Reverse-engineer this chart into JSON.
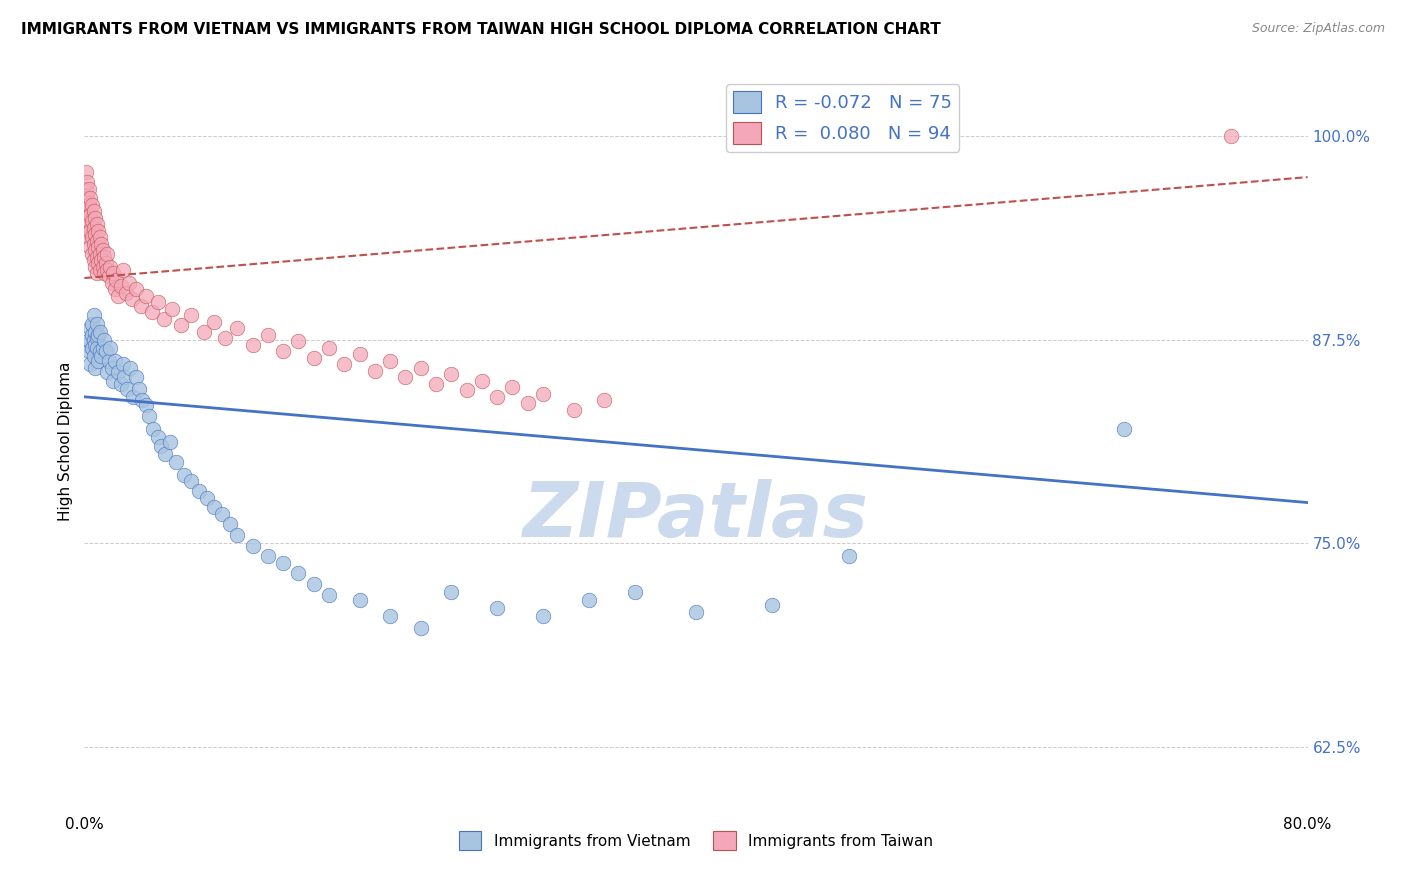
{
  "title": "IMMIGRANTS FROM VIETNAM VS IMMIGRANTS FROM TAIWAN HIGH SCHOOL DIPLOMA CORRELATION CHART",
  "source": "Source: ZipAtlas.com",
  "xlabel_bottom_left": "0.0%",
  "xlabel_bottom_right": "80.0%",
  "ylabel": "High School Diploma",
  "yticks": [
    0.625,
    0.75,
    0.875,
    1.0
  ],
  "ytick_labels": [
    "62.5%",
    "75.0%",
    "87.5%",
    "100.0%"
  ],
  "watermark": "ZIPatlas",
  "legend_r_vietnam": "-0.072",
  "legend_n_vietnam": "75",
  "legend_r_taiwan": "0.080",
  "legend_n_taiwan": "94",
  "color_vietnam": "#a8c4e0",
  "color_taiwan": "#f4a7b9",
  "trendline_vietnam": "#4472c4",
  "trendline_taiwan": "#c0504d",
  "vietnam_x": [
    0.002,
    0.003,
    0.003,
    0.004,
    0.004,
    0.005,
    0.005,
    0.005,
    0.006,
    0.006,
    0.006,
    0.007,
    0.007,
    0.007,
    0.008,
    0.008,
    0.008,
    0.009,
    0.009,
    0.01,
    0.01,
    0.011,
    0.012,
    0.013,
    0.014,
    0.015,
    0.016,
    0.017,
    0.018,
    0.019,
    0.02,
    0.022,
    0.024,
    0.025,
    0.026,
    0.028,
    0.03,
    0.032,
    0.034,
    0.036,
    0.038,
    0.04,
    0.042,
    0.045,
    0.048,
    0.05,
    0.053,
    0.056,
    0.06,
    0.065,
    0.07,
    0.075,
    0.08,
    0.085,
    0.09,
    0.095,
    0.1,
    0.11,
    0.12,
    0.13,
    0.14,
    0.15,
    0.16,
    0.18,
    0.2,
    0.22,
    0.24,
    0.27,
    0.3,
    0.33,
    0.36,
    0.4,
    0.45,
    0.5,
    0.68
  ],
  "vietnam_y": [
    0.872,
    0.868,
    0.875,
    0.882,
    0.86,
    0.878,
    0.885,
    0.87,
    0.89,
    0.875,
    0.865,
    0.872,
    0.88,
    0.858,
    0.876,
    0.87,
    0.885,
    0.862,
    0.878,
    0.868,
    0.88,
    0.865,
    0.87,
    0.875,
    0.868,
    0.855,
    0.862,
    0.87,
    0.858,
    0.85,
    0.862,
    0.855,
    0.848,
    0.86,
    0.852,
    0.845,
    0.858,
    0.84,
    0.852,
    0.845,
    0.838,
    0.835,
    0.828,
    0.82,
    0.815,
    0.81,
    0.805,
    0.812,
    0.8,
    0.792,
    0.788,
    0.782,
    0.778,
    0.772,
    0.768,
    0.762,
    0.755,
    0.748,
    0.742,
    0.738,
    0.732,
    0.725,
    0.718,
    0.715,
    0.705,
    0.698,
    0.72,
    0.71,
    0.705,
    0.715,
    0.72,
    0.708,
    0.712,
    0.742,
    0.82
  ],
  "taiwan_x": [
    0.001,
    0.001,
    0.001,
    0.002,
    0.002,
    0.002,
    0.002,
    0.003,
    0.003,
    0.003,
    0.003,
    0.004,
    0.004,
    0.004,
    0.004,
    0.005,
    0.005,
    0.005,
    0.005,
    0.006,
    0.006,
    0.006,
    0.006,
    0.007,
    0.007,
    0.007,
    0.007,
    0.008,
    0.008,
    0.008,
    0.008,
    0.009,
    0.009,
    0.009,
    0.01,
    0.01,
    0.01,
    0.011,
    0.011,
    0.012,
    0.012,
    0.013,
    0.013,
    0.014,
    0.015,
    0.015,
    0.016,
    0.017,
    0.018,
    0.019,
    0.02,
    0.021,
    0.022,
    0.024,
    0.025,
    0.027,
    0.029,
    0.031,
    0.034,
    0.037,
    0.04,
    0.044,
    0.048,
    0.052,
    0.057,
    0.063,
    0.07,
    0.078,
    0.085,
    0.092,
    0.1,
    0.11,
    0.12,
    0.13,
    0.14,
    0.15,
    0.16,
    0.17,
    0.18,
    0.19,
    0.2,
    0.21,
    0.22,
    0.23,
    0.24,
    0.25,
    0.26,
    0.27,
    0.28,
    0.29,
    0.3,
    0.32,
    0.34,
    0.75
  ],
  "taiwan_y": [
    0.968,
    0.978,
    0.958,
    0.972,
    0.962,
    0.952,
    0.942,
    0.968,
    0.958,
    0.948,
    0.938,
    0.962,
    0.952,
    0.942,
    0.932,
    0.958,
    0.948,
    0.938,
    0.928,
    0.954,
    0.944,
    0.934,
    0.924,
    0.95,
    0.94,
    0.93,
    0.92,
    0.946,
    0.936,
    0.926,
    0.916,
    0.942,
    0.932,
    0.922,
    0.938,
    0.928,
    0.918,
    0.934,
    0.924,
    0.93,
    0.92,
    0.926,
    0.916,
    0.922,
    0.918,
    0.928,
    0.914,
    0.92,
    0.91,
    0.916,
    0.906,
    0.912,
    0.902,
    0.908,
    0.918,
    0.904,
    0.91,
    0.9,
    0.906,
    0.896,
    0.902,
    0.892,
    0.898,
    0.888,
    0.894,
    0.884,
    0.89,
    0.88,
    0.886,
    0.876,
    0.882,
    0.872,
    0.878,
    0.868,
    0.874,
    0.864,
    0.87,
    0.86,
    0.866,
    0.856,
    0.862,
    0.852,
    0.858,
    0.848,
    0.854,
    0.844,
    0.85,
    0.84,
    0.846,
    0.836,
    0.842,
    0.832,
    0.838,
    1.0
  ],
  "xlim": [
    0.0,
    0.8
  ],
  "ylim": [
    0.585,
    1.04
  ],
  "trendline_viet_x0": 0.0,
  "trendline_viet_x1": 0.8,
  "trendline_viet_y0": 0.84,
  "trendline_viet_y1": 0.775,
  "trendline_taiwan_x0": 0.0,
  "trendline_taiwan_x1": 0.8,
  "trendline_taiwan_y0": 0.913,
  "trendline_taiwan_y1": 0.975,
  "background_color": "#ffffff",
  "watermark_color": "#ccdaee",
  "title_fontsize": 11,
  "source_fontsize": 9
}
